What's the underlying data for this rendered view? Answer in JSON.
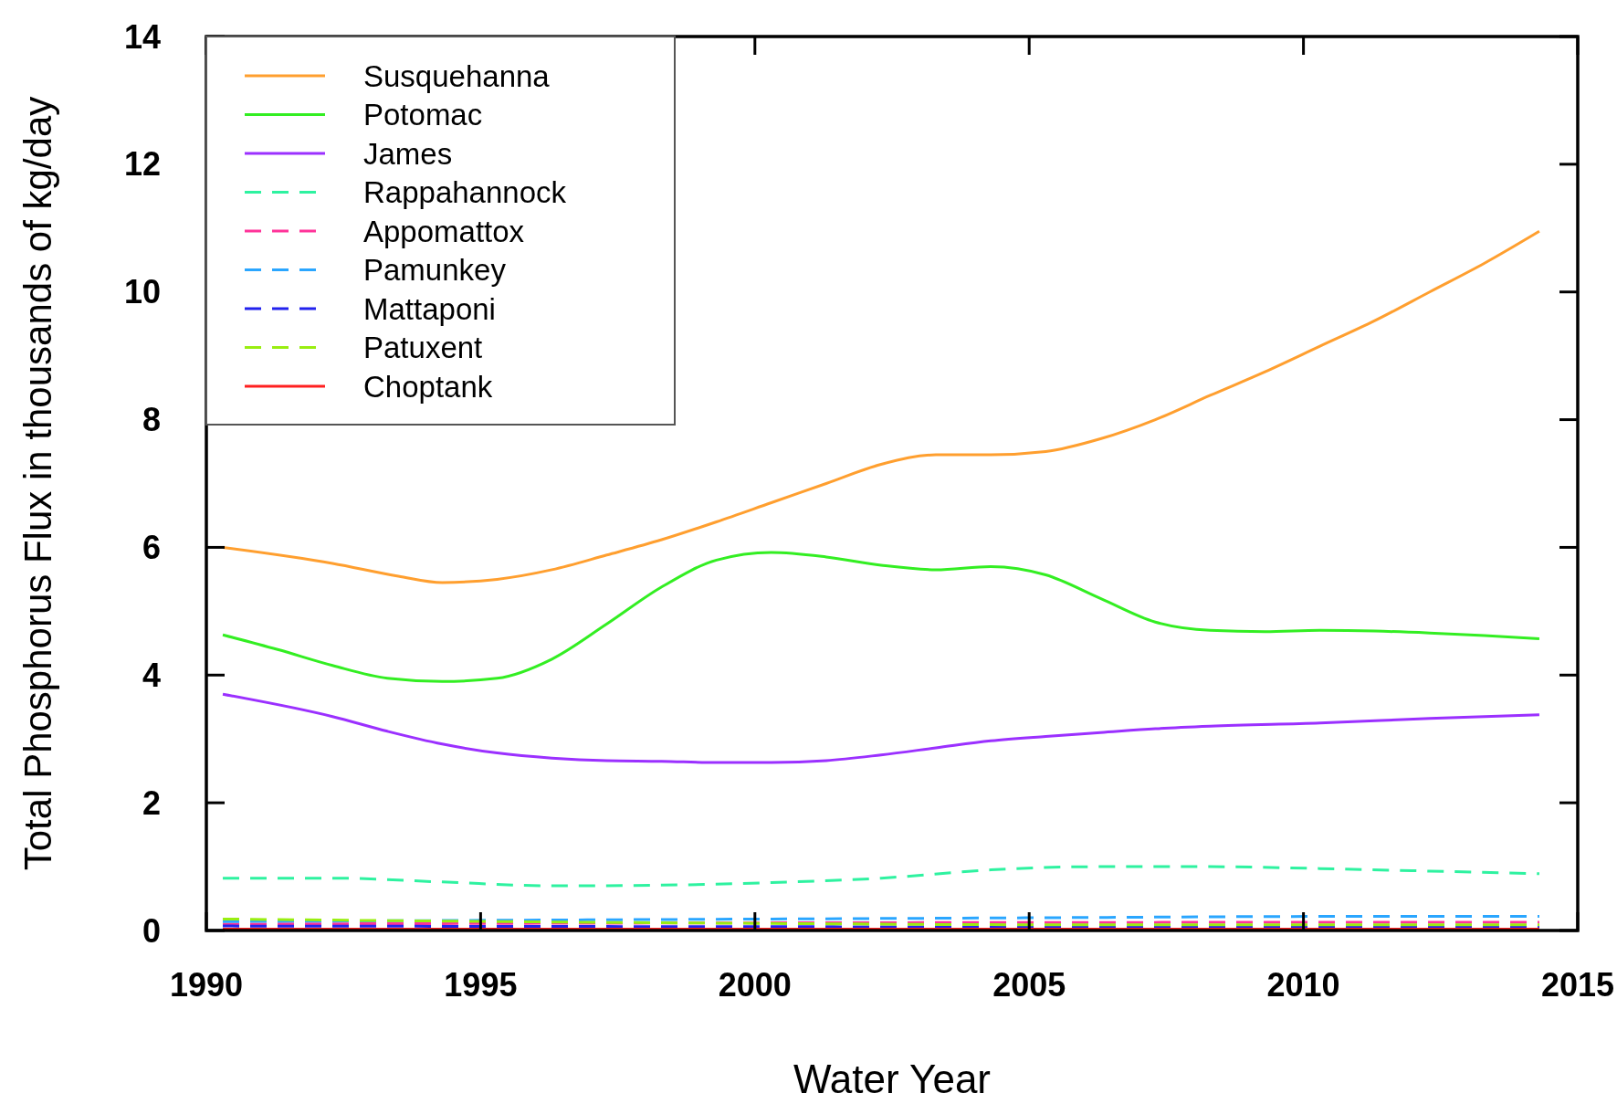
{
  "chart_data": {
    "type": "line",
    "xlabel": "Water Year",
    "ylabel": "Total Phosphorus Flux in thousands of kg/day",
    "xlim": [
      1990,
      2015
    ],
    "xticks": [
      1990,
      1995,
      2000,
      2005,
      2010,
      2015
    ],
    "ylim": [
      0,
      14
    ],
    "yticks": [
      0,
      2,
      4,
      6,
      8,
      10,
      12,
      14
    ],
    "grid": false,
    "legend": "top left",
    "marker": "none",
    "series": [
      {
        "name": "Susquehanna",
        "color": "#ff9f2f",
        "line_style": "solid",
        "x": [
          1990.3,
          1992.3,
          1993.5,
          1994.3,
          1995.3,
          1996.3,
          1997.3,
          1998.3,
          1999.3,
          2000.3,
          2001.3,
          2002.3,
          2003.3,
          2004.3,
          2005.3,
          2006.3,
          2007.3,
          2008.3,
          2009.3,
          2010.3,
          2011.3,
          2012.3,
          2013.3,
          2014.3
        ],
        "values": [
          6.0,
          5.75,
          5.55,
          5.45,
          5.5,
          5.65,
          5.88,
          6.12,
          6.4,
          6.7,
          7.0,
          7.3,
          7.45,
          7.45,
          7.5,
          7.7,
          8.0,
          8.38,
          8.75,
          9.15,
          9.55,
          10.0,
          10.45,
          10.95
        ]
      },
      {
        "name": "Potomac",
        "color": "#33ee22",
        "line_style": "solid",
        "x": [
          1990.3,
          1991.3,
          1992.3,
          1993.3,
          1994.3,
          1995.3,
          1996.3,
          1997.3,
          1998.3,
          1999.3,
          2000.3,
          2001.3,
          2002.3,
          2003.3,
          2004.3,
          2005.3,
          2006.3,
          2007.3,
          2008.3,
          2009.3,
          2010.3,
          2011.3,
          2012.3,
          2013.3,
          2014.3
        ],
        "values": [
          4.63,
          4.4,
          4.15,
          3.95,
          3.9,
          3.95,
          4.25,
          4.8,
          5.38,
          5.8,
          5.92,
          5.85,
          5.72,
          5.65,
          5.7,
          5.57,
          5.2,
          4.83,
          4.7,
          4.68,
          4.7,
          4.69,
          4.66,
          4.62,
          4.57
        ]
      },
      {
        "name": "James",
        "color": "#9b30ff",
        "line_style": "solid",
        "x": [
          1990.3,
          1992.3,
          1993.3,
          1994.3,
          1995.3,
          1996.3,
          1997.3,
          1998.3,
          1999.3,
          2000.3,
          2001.3,
          2002.3,
          2003.3,
          2004.3,
          2005.3,
          2006.3,
          2007.3,
          2008.3,
          2010.3,
          2012.3,
          2014.3
        ],
        "values": [
          3.7,
          3.35,
          3.12,
          2.92,
          2.78,
          2.7,
          2.66,
          2.65,
          2.63,
          2.63,
          2.66,
          2.75,
          2.86,
          2.97,
          3.04,
          3.1,
          3.16,
          3.2,
          3.25,
          3.32,
          3.38
        ]
      },
      {
        "name": "Rappahannock",
        "color": "#2ef2a0",
        "line_style": "dashed",
        "x": [
          1990.3,
          1992.3,
          1994.3,
          1996.3,
          1998.3,
          2000.3,
          2002.3,
          2004.3,
          2006.3,
          2008.3,
          2010.3,
          2012.3,
          2014.3
        ],
        "values": [
          0.82,
          0.82,
          0.76,
          0.7,
          0.71,
          0.75,
          0.82,
          0.95,
          1.0,
          1.0,
          0.97,
          0.93,
          0.89
        ]
      },
      {
        "name": "Appomattox",
        "color": "#ff3399",
        "line_style": "dashed",
        "x": [
          1990.3,
          2000.3,
          2014.3
        ],
        "values": [
          0.1,
          0.12,
          0.13
        ]
      },
      {
        "name": "Pamunkey",
        "color": "#2aa6ff",
        "line_style": "dashed",
        "x": [
          1990.3,
          1995.3,
          2000.3,
          2005.3,
          2010.3,
          2014.3
        ],
        "values": [
          0.14,
          0.16,
          0.18,
          0.2,
          0.22,
          0.22
        ]
      },
      {
        "name": "Mattaponi",
        "color": "#2222ee",
        "line_style": "dashed",
        "x": [
          1990.3,
          2000.3,
          2014.3
        ],
        "values": [
          0.07,
          0.06,
          0.05
        ]
      },
      {
        "name": "Patuxent",
        "color": "#99ee11",
        "line_style": "dashed",
        "x": [
          1990.3,
          1995.3,
          2000.3,
          2005.3,
          2014.3
        ],
        "values": [
          0.18,
          0.14,
          0.11,
          0.09,
          0.09
        ]
      },
      {
        "name": "Choptank",
        "color": "#ff2020",
        "line_style": "solid",
        "x": [
          1990.3,
          2014.3
        ],
        "values": [
          0.02,
          0.02
        ]
      }
    ]
  }
}
